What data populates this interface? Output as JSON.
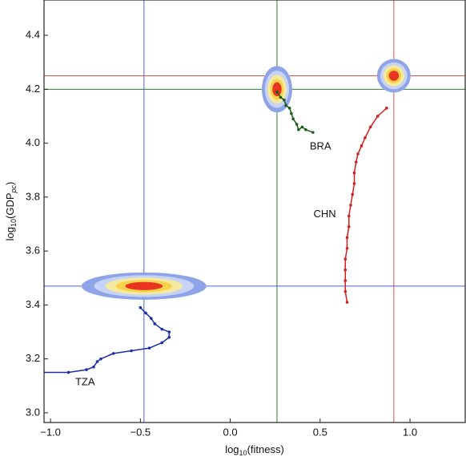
{
  "chart_data": {
    "type": "line",
    "x_label_parts": [
      "log",
      "10",
      "(fitness)"
    ],
    "y_label_parts": [
      "log",
      "10",
      "(GDP",
      "pc",
      ")"
    ],
    "xlim": [
      -1.036,
      1.307
    ],
    "ylim": [
      2.964,
      4.531
    ],
    "xticks": [
      {
        "value": -1.0,
        "label": "−1.0"
      },
      {
        "value": -0.5,
        "label": "−0.5"
      },
      {
        "value": 0.0,
        "label": "0.0"
      },
      0.5,
      {
        "value": 1.0,
        "label": "1.0"
      }
    ],
    "yticks": [
      {
        "value": 3.0,
        "label": "3.0"
      },
      3.2,
      3.4,
      3.6,
      3.8,
      {
        "value": 4.0,
        "label": "4.0"
      },
      4.2,
      4.4
    ],
    "series": [
      {
        "name": "BRA",
        "color": "#1a5e1a",
        "line_color": "#2e7d2e",
        "target": [
          0.26,
          4.2
        ],
        "x": [
          0.26,
          0.28,
          0.3,
          0.31,
          0.33,
          0.34,
          0.35,
          0.37,
          0.38,
          0.4,
          0.42,
          0.46
        ],
        "values": [
          4.19,
          4.17,
          4.16,
          4.14,
          4.13,
          4.11,
          4.09,
          4.07,
          4.05,
          4.06,
          4.05,
          4.04
        ]
      },
      {
        "name": "CHN",
        "color": "#d42020",
        "line_color": "#d9534f",
        "target": [
          0.91,
          4.25
        ],
        "x": [
          0.65,
          0.64,
          0.64,
          0.64,
          0.64,
          0.65,
          0.65,
          0.66,
          0.66,
          0.67,
          0.68,
          0.69,
          0.69,
          0.7,
          0.71,
          0.73,
          0.75,
          0.78,
          0.82,
          0.87
        ],
        "values": [
          3.41,
          3.45,
          3.49,
          3.53,
          3.57,
          3.61,
          3.65,
          3.69,
          3.73,
          3.77,
          3.81,
          3.85,
          3.89,
          3.93,
          3.96,
          3.99,
          4.02,
          4.06,
          4.1,
          4.13
        ]
      },
      {
        "name": "TZA",
        "color": "#1a2fb0",
        "line_color": "#4a5fd0",
        "target": [
          -0.48,
          3.47
        ],
        "x": [
          -1.04,
          -0.9,
          -0.8,
          -0.76,
          -0.74,
          -0.72,
          -0.65,
          -0.55,
          -0.45,
          -0.38,
          -0.34,
          -0.34,
          -0.38,
          -0.42,
          -0.44,
          -0.47,
          -0.5
        ],
        "values": [
          3.15,
          3.15,
          3.16,
          3.17,
          3.19,
          3.2,
          3.22,
          3.23,
          3.24,
          3.26,
          3.28,
          3.3,
          3.31,
          3.33,
          3.35,
          3.37,
          3.39
        ]
      }
    ]
  }
}
